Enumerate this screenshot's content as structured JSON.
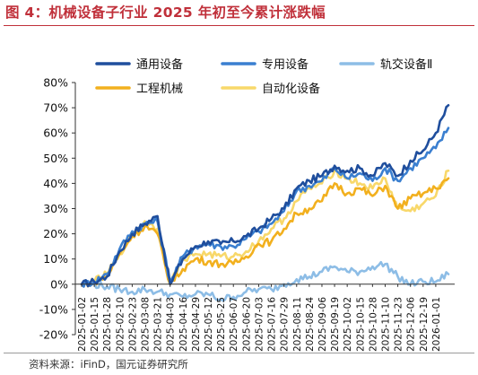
{
  "figure": {
    "title": "图 4：机械设备子行业 2025 年初至今累计涨跌幅",
    "source": "资料来源：iFinD，国元证券研究所"
  },
  "colors": {
    "title": "#c0303a",
    "通用设备": "#1f4e9d",
    "专用设备": "#3a7fd0",
    "轨交设备Ⅱ": "#8dbde6",
    "工程机械": "#f2b01e",
    "自动化设备": "#f8d86a"
  },
  "chart_data": {
    "type": "line",
    "title": "",
    "xlabel": "",
    "ylabel": "",
    "ylim": [
      -0.2,
      0.8
    ],
    "yticks": [
      -0.2,
      -0.1,
      0,
      0.1,
      0.2,
      0.3,
      0.4,
      0.5,
      0.6,
      0.7,
      0.8
    ],
    "ytick_labels": [
      "-20%",
      "-10%",
      "0%",
      "10%",
      "20%",
      "30%",
      "40%",
      "50%",
      "60%",
      "70%",
      "80%"
    ],
    "x": [
      "2025-01-02",
      "2025-01-15",
      "2025-01-28",
      "2025-02-10",
      "2025-02-23",
      "2025-03-08",
      "2025-03-21",
      "2025-04-03",
      "2025-04-16",
      "2025-04-29",
      "2025-05-12",
      "2025-05-25",
      "2025-06-07",
      "2025-06-20",
      "2025-07-03",
      "2025-07-16",
      "2025-07-29",
      "2025-08-11",
      "2025-08-24",
      "2025-09-06",
      "2025-09-19",
      "2025-10-02",
      "2025-10-15",
      "2025-10-28",
      "2025-11-10",
      "2025-11-23",
      "2025-12-06",
      "2025-12-19",
      "2026-01-01",
      "2026-01-08"
    ],
    "xtick_labels": [
      "2025-01-02",
      "2025-01-15",
      "2025-01-28",
      "2025-02-10",
      "2025-02-23",
      "2025-03-08",
      "2025-03-21",
      "2025-04-03",
      "2025-04-16",
      "2025-04-29",
      "2025-05-12",
      "2025-05-25",
      "2025-06-07",
      "2025-06-20",
      "2025-07-03",
      "2025-07-16",
      "2025-07-29",
      "2025-08-11",
      "2025-08-24",
      "2025-09-06",
      "2025-09-19",
      "2025-10-02",
      "2025-10-15",
      "2025-10-28",
      "2025-11-10",
      "2025-11-23",
      "2025-12-06",
      "2025-12-19",
      "2026-01-01"
    ],
    "legend_position": "top",
    "grid": false,
    "series": [
      {
        "name": "通用设备",
        "values": [
          0.0,
          0.01,
          0.03,
          0.13,
          0.2,
          0.24,
          0.27,
          0.0,
          0.1,
          0.15,
          0.17,
          0.16,
          0.17,
          0.19,
          0.22,
          0.26,
          0.3,
          0.38,
          0.41,
          0.43,
          0.47,
          0.45,
          0.46,
          0.43,
          0.48,
          0.43,
          0.49,
          0.53,
          0.6,
          0.71
        ]
      },
      {
        "name": "专用设备",
        "values": [
          0.0,
          0.01,
          0.04,
          0.14,
          0.21,
          0.24,
          0.25,
          0.01,
          0.11,
          0.15,
          0.16,
          0.15,
          0.15,
          0.18,
          0.21,
          0.24,
          0.29,
          0.37,
          0.39,
          0.41,
          0.46,
          0.42,
          0.44,
          0.41,
          0.46,
          0.41,
          0.46,
          0.5,
          0.54,
          0.62
        ]
      },
      {
        "name": "轨交设备Ⅱ",
        "values": [
          0.0,
          0.0,
          -0.01,
          -0.02,
          -0.03,
          -0.02,
          -0.03,
          -0.04,
          -0.05,
          -0.04,
          -0.04,
          -0.06,
          -0.05,
          -0.03,
          -0.02,
          -0.02,
          0.0,
          0.02,
          0.03,
          0.05,
          0.07,
          0.05,
          0.05,
          0.07,
          0.08,
          0.03,
          0.0,
          0.01,
          0.01,
          0.04
        ]
      },
      {
        "name": "工程机械",
        "values": [
          0.0,
          0.01,
          0.03,
          0.12,
          0.19,
          0.23,
          0.2,
          0.0,
          0.06,
          0.1,
          0.09,
          0.08,
          0.08,
          0.11,
          0.16,
          0.17,
          0.22,
          0.28,
          0.3,
          0.33,
          0.4,
          0.36,
          0.38,
          0.35,
          0.39,
          0.3,
          0.34,
          0.36,
          0.38,
          0.42
        ]
      },
      {
        "name": "自动化设备",
        "values": [
          0.0,
          0.01,
          0.04,
          0.12,
          0.2,
          0.25,
          0.22,
          0.0,
          0.1,
          0.12,
          0.12,
          0.11,
          0.11,
          0.13,
          0.17,
          0.22,
          0.26,
          0.33,
          0.38,
          0.4,
          0.45,
          0.42,
          0.4,
          0.38,
          0.42,
          0.3,
          0.29,
          0.32,
          0.35,
          0.45
        ]
      }
    ]
  }
}
